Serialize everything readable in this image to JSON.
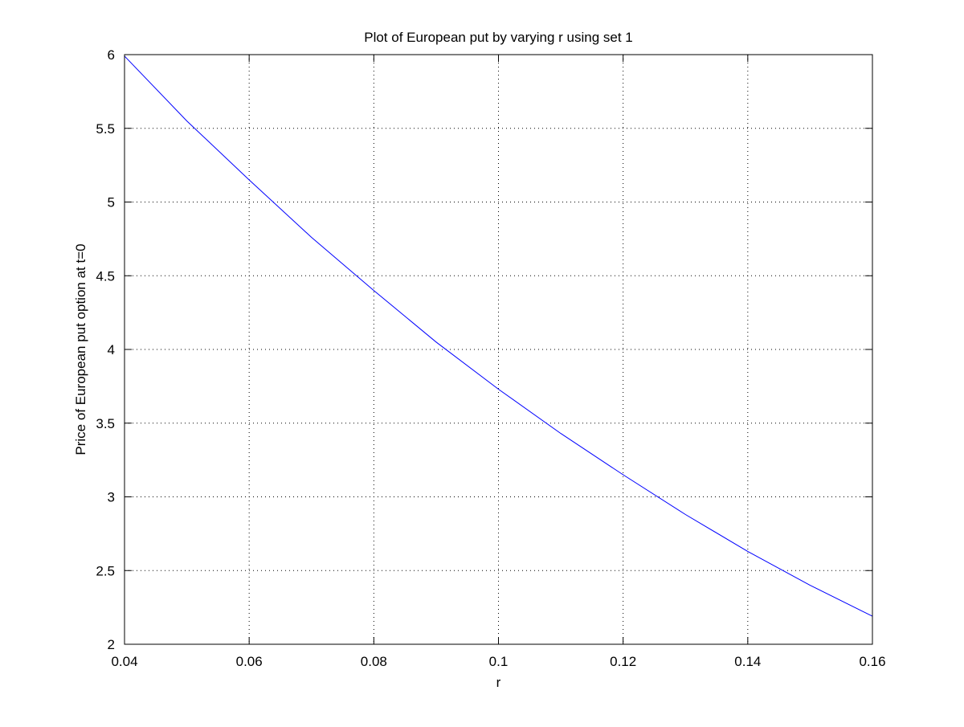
{
  "chart_data": {
    "type": "line",
    "title": "Plot of European put by varying r using set 1",
    "xlabel": "r",
    "ylabel": "Price of European put option at t=0",
    "xlim": [
      0.04,
      0.16
    ],
    "ylim": [
      2,
      6
    ],
    "xticks": [
      0.04,
      0.06,
      0.08,
      0.1,
      0.12,
      0.14,
      0.16
    ],
    "xtick_labels": [
      "0.04",
      "0.06",
      "0.08",
      "0.1",
      "0.12",
      "0.14",
      "0.16"
    ],
    "yticks": [
      2,
      2.5,
      3,
      3.5,
      4,
      4.5,
      5,
      5.5,
      6
    ],
    "ytick_labels": [
      "2",
      "2.5",
      "3",
      "3.5",
      "4",
      "4.5",
      "5",
      "5.5",
      "6"
    ],
    "grid": true,
    "grid_style": "dotted",
    "line_color": "#0000ff",
    "series": [
      {
        "x": [
          0.04,
          0.05,
          0.06,
          0.07,
          0.08,
          0.09,
          0.1,
          0.11,
          0.12,
          0.13,
          0.14,
          0.15,
          0.16
        ],
        "y": [
          5.99,
          5.55,
          5.15,
          4.76,
          4.4,
          4.05,
          3.73,
          3.43,
          3.15,
          2.88,
          2.63,
          2.4,
          2.19
        ]
      }
    ]
  }
}
